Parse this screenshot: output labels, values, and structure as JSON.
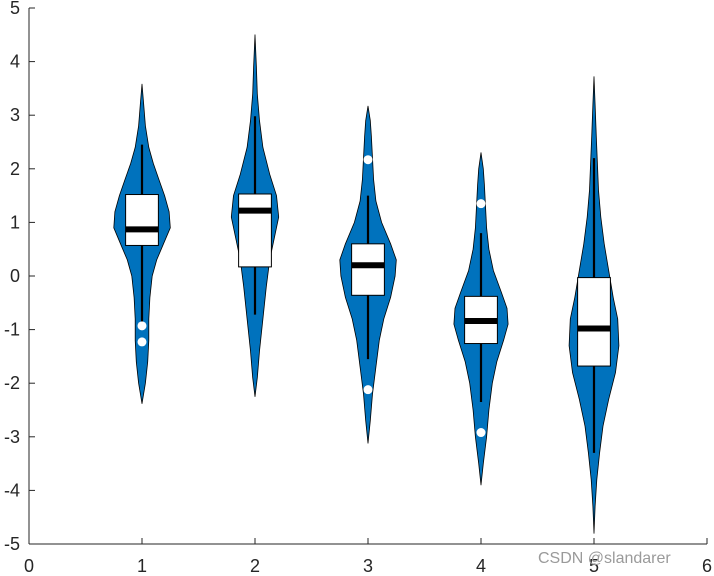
{
  "chart_data": {
    "type": "violin",
    "title": "",
    "xlabel": "",
    "ylabel": "",
    "xlim": [
      0,
      6
    ],
    "ylim": [
      -5,
      5
    ],
    "x_ticks": [
      "0",
      "1",
      "2",
      "3",
      "4",
      "5",
      "6"
    ],
    "y_ticks": [
      "5",
      "4",
      "3",
      "2",
      "1",
      "0",
      "-1",
      "-2",
      "-3",
      "-4",
      "-5"
    ],
    "grid": false,
    "violin_color": "#0072bd",
    "groups": [
      {
        "x": 1,
        "median": 0.87,
        "q1": 0.57,
        "q3": 1.52,
        "whisker_low": -0.85,
        "whisker_high": 2.45,
        "outliers": [
          -0.93,
          -1.23
        ],
        "density": [
          [
            -2.38,
            0.0
          ],
          [
            -2.0,
            0.03
          ],
          [
            -1.6,
            0.05
          ],
          [
            -1.2,
            0.06
          ],
          [
            -0.8,
            0.06
          ],
          [
            -0.4,
            0.07
          ],
          [
            0.0,
            0.09
          ],
          [
            0.3,
            0.13
          ],
          [
            0.6,
            0.19
          ],
          [
            0.9,
            0.25
          ],
          [
            1.2,
            0.24
          ],
          [
            1.5,
            0.2
          ],
          [
            1.8,
            0.15
          ],
          [
            2.1,
            0.1
          ],
          [
            2.4,
            0.06
          ],
          [
            2.8,
            0.03
          ],
          [
            3.2,
            0.015
          ],
          [
            3.58,
            0.0
          ]
        ]
      },
      {
        "x": 2,
        "median": 1.22,
        "q1": 0.17,
        "q3": 1.53,
        "whisker_low": -0.72,
        "whisker_high": 2.98,
        "outliers": [],
        "density": [
          [
            -2.25,
            0.0
          ],
          [
            -1.9,
            0.02
          ],
          [
            -1.4,
            0.04
          ],
          [
            -0.8,
            0.07
          ],
          [
            -0.2,
            0.1
          ],
          [
            0.3,
            0.13
          ],
          [
            0.7,
            0.17
          ],
          [
            1.1,
            0.21
          ],
          [
            1.5,
            0.19
          ],
          [
            1.9,
            0.13
          ],
          [
            2.4,
            0.07
          ],
          [
            2.9,
            0.04
          ],
          [
            3.4,
            0.02
          ],
          [
            3.9,
            0.012
          ],
          [
            4.5,
            0.0
          ]
        ]
      },
      {
        "x": 3,
        "median": 0.2,
        "q1": -0.36,
        "q3": 0.6,
        "whisker_low": -1.55,
        "whisker_high": 1.5,
        "outliers": [
          2.17,
          -2.12
        ],
        "density": [
          [
            -3.12,
            0.0
          ],
          [
            -2.7,
            0.02
          ],
          [
            -2.2,
            0.04
          ],
          [
            -1.7,
            0.07
          ],
          [
            -1.2,
            0.1
          ],
          [
            -0.8,
            0.14
          ],
          [
            -0.4,
            0.2
          ],
          [
            0.0,
            0.24
          ],
          [
            0.3,
            0.25
          ],
          [
            0.6,
            0.2
          ],
          [
            1.0,
            0.12
          ],
          [
            1.4,
            0.07
          ],
          [
            1.8,
            0.05
          ],
          [
            2.2,
            0.04
          ],
          [
            2.6,
            0.03
          ],
          [
            2.9,
            0.02
          ],
          [
            3.17,
            0.0
          ]
        ]
      },
      {
        "x": 4,
        "median": -0.84,
        "q1": -1.26,
        "q3": -0.38,
        "whisker_low": -2.35,
        "whisker_high": 0.8,
        "outliers": [
          1.35,
          -2.92
        ],
        "density": [
          [
            -3.9,
            0.0
          ],
          [
            -3.5,
            0.02
          ],
          [
            -3.0,
            0.05
          ],
          [
            -2.5,
            0.07
          ],
          [
            -2.0,
            0.1
          ],
          [
            -1.6,
            0.14
          ],
          [
            -1.2,
            0.2
          ],
          [
            -0.9,
            0.24
          ],
          [
            -0.6,
            0.23
          ],
          [
            -0.3,
            0.18
          ],
          [
            0.1,
            0.11
          ],
          [
            0.5,
            0.07
          ],
          [
            0.9,
            0.05
          ],
          [
            1.3,
            0.04
          ],
          [
            1.7,
            0.03
          ],
          [
            2.0,
            0.02
          ],
          [
            2.3,
            0.0
          ]
        ]
      },
      {
        "x": 5,
        "median": -0.98,
        "q1": -1.68,
        "q3": -0.03,
        "whisker_low": -3.3,
        "whisker_high": 2.2,
        "outliers": [],
        "density": [
          [
            -4.8,
            0.0
          ],
          [
            -4.3,
            0.01
          ],
          [
            -3.8,
            0.025
          ],
          [
            -3.3,
            0.05
          ],
          [
            -2.8,
            0.08
          ],
          [
            -2.3,
            0.13
          ],
          [
            -1.8,
            0.19
          ],
          [
            -1.3,
            0.22
          ],
          [
            -0.8,
            0.21
          ],
          [
            -0.4,
            0.17
          ],
          [
            0.1,
            0.13
          ],
          [
            0.6,
            0.09
          ],
          [
            1.1,
            0.06
          ],
          [
            1.6,
            0.04
          ],
          [
            2.1,
            0.03
          ],
          [
            2.6,
            0.02
          ],
          [
            3.2,
            0.01
          ],
          [
            3.72,
            0.0
          ]
        ]
      }
    ]
  },
  "watermark": "CSDN @slandarer"
}
